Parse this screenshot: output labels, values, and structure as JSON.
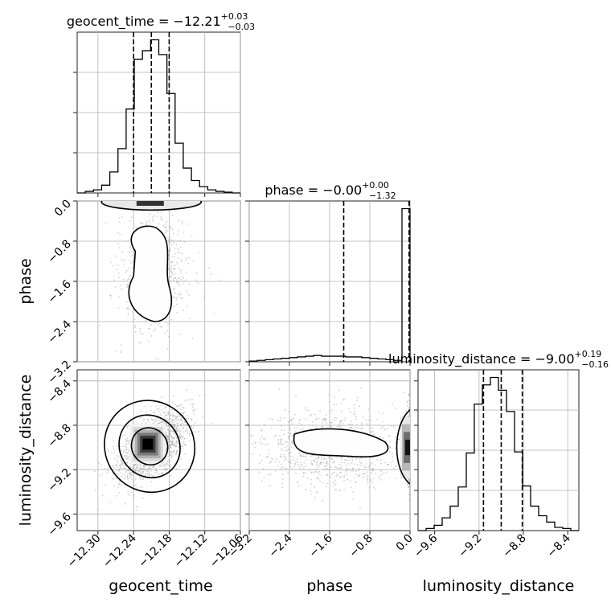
{
  "chart_data": {
    "type": "corner",
    "parameters": [
      {
        "name": "geocent_time",
        "axis_label": "geocent_time",
        "range": [
          -12.335,
          -12.06
        ],
        "ticks": [
          -12.3,
          -12.24,
          -12.18,
          -12.12,
          -12.06
        ],
        "tick_labels": [
          "−12.30",
          "−12.24",
          "−12.18",
          "−12.12",
          "−12.06"
        ],
        "title": {
          "main": "geocent_time = −12.21",
          "sup": "+0.03",
          "sub": "−0.03"
        },
        "quantiles": [
          -12.24,
          -12.21,
          -12.18
        ],
        "histogram": {
          "bin_edges": [
            -12.335,
            -12.32125,
            -12.3075,
            -12.29375,
            -12.28,
            -12.26625,
            -12.2525,
            -12.23875,
            -12.225,
            -12.21125,
            -12.1975,
            -12.18375,
            -12.17,
            -12.15625,
            -12.1425,
            -12.12875,
            -12.115,
            -12.10125,
            -12.0875,
            -12.07375,
            -12.06
          ],
          "counts": [
            0,
            2,
            4,
            10,
            27,
            57,
            108,
            172,
            183,
            197,
            178,
            128,
            64,
            32,
            16,
            8,
            4,
            2,
            1,
            0
          ]
        }
      },
      {
        "name": "phase",
        "axis_label": "phase",
        "range": [
          -3.2,
          0.0
        ],
        "ticks": [
          -3.2,
          -2.4,
          -1.6,
          -0.8,
          0.0
        ],
        "tick_labels": [
          "−3.2",
          "−2.4",
          "−1.6",
          "−0.8",
          "0.0"
        ],
        "title": {
          "main": "phase = −0.00",
          "sup": "+0.00",
          "sub": "−1.32"
        },
        "quantiles": [
          -1.32,
          -0.001,
          0.0
        ],
        "histogram": {
          "bin_edges": [
            -3.2,
            -3.04,
            -2.88,
            -2.72,
            -2.56,
            -2.4,
            -2.24,
            -2.08,
            -1.92,
            -1.76,
            -1.6,
            -1.44,
            -1.28,
            -1.12,
            -0.96,
            -0.8,
            -0.64,
            -0.48,
            -0.32,
            -0.16,
            0.0
          ],
          "counts": [
            1,
            2,
            3,
            4,
            5,
            6,
            7,
            8,
            9,
            8,
            8,
            8,
            7,
            7,
            6,
            5,
            4,
            3,
            2,
            220
          ]
        }
      },
      {
        "name": "luminosity_distance",
        "axis_label": "luminosity_distance",
        "range": [
          -9.75,
          -8.3
        ],
        "ticks": [
          -9.6,
          -9.2,
          -8.8,
          -8.4
        ],
        "tick_labels": [
          "−9.6",
          "−9.2",
          "−8.8",
          "−8.4"
        ],
        "title": {
          "main": "luminosity_distance = −9.00",
          "sup": "+0.19",
          "sub": "−0.16"
        },
        "quantiles": [
          -9.16,
          -9.0,
          -8.81
        ],
        "histogram": {
          "bin_edges": [
            -9.75,
            -9.6775,
            -9.605,
            -9.5325,
            -9.46,
            -9.3875,
            -9.315,
            -9.2425,
            -9.17,
            -9.0975,
            -9.025,
            -8.9525,
            -8.88,
            -8.8075,
            -8.735,
            -8.6625,
            -8.59,
            -8.5175,
            -8.445,
            -8.3725,
            -8.3
          ],
          "counts": [
            0,
            2,
            5,
            12,
            23,
            41,
            73,
            119,
            137,
            144,
            132,
            112,
            74,
            42,
            23,
            14,
            8,
            3,
            2,
            0
          ]
        }
      }
    ],
    "pairs": [
      {
        "x": "geocent_time",
        "y": "phase"
      },
      {
        "x": "geocent_time",
        "y": "luminosity_distance"
      },
      {
        "x": "phase",
        "y": "luminosity_distance"
      }
    ],
    "grid": true,
    "line_color": "#000000",
    "quantile_style": "dashed"
  }
}
